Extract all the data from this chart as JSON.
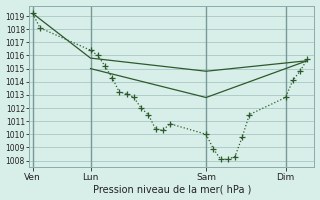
{
  "title": "Pression niveau de la mer( hPa )",
  "bg_color": "#d8eee8",
  "plot_bg_color": "#d8eee8",
  "grid_color": "#b0cccc",
  "line_color": "#2d5a2d",
  "xtick_labels": [
    "Ven",
    "Lun",
    "Sam",
    "Dim"
  ],
  "xtick_positions": [
    0,
    16,
    48,
    70
  ],
  "ylim": [
    1007.5,
    1019.8
  ],
  "xlim": [
    -1,
    78
  ],
  "yticks": [
    1008,
    1009,
    1010,
    1011,
    1012,
    1013,
    1014,
    1015,
    1016,
    1017,
    1018,
    1019
  ],
  "vline_positions": [
    0,
    16,
    48,
    70
  ],
  "line1_x": [
    0,
    2,
    16,
    18,
    20,
    22,
    24,
    26,
    28,
    30,
    32,
    34,
    36,
    38,
    48,
    50,
    52,
    54,
    56,
    58,
    60,
    70,
    72,
    74,
    76
  ],
  "line1_y": [
    1019.2,
    1018.1,
    1016.4,
    1016.0,
    1015.2,
    1014.3,
    1013.2,
    1013.1,
    1012.8,
    1012.0,
    1011.5,
    1010.4,
    1010.3,
    1010.8,
    1010.0,
    1008.9,
    1008.1,
    1008.1,
    1008.3,
    1009.8,
    1011.5,
    1012.8,
    1014.1,
    1014.8,
    1015.7
  ],
  "line2_x": [
    0,
    16,
    48,
    76
  ],
  "line2_y": [
    1019.2,
    1015.8,
    1014.8,
    1015.6
  ],
  "line3_x": [
    16,
    48,
    76
  ],
  "line3_y": [
    1015.0,
    1012.8,
    1015.6
  ]
}
